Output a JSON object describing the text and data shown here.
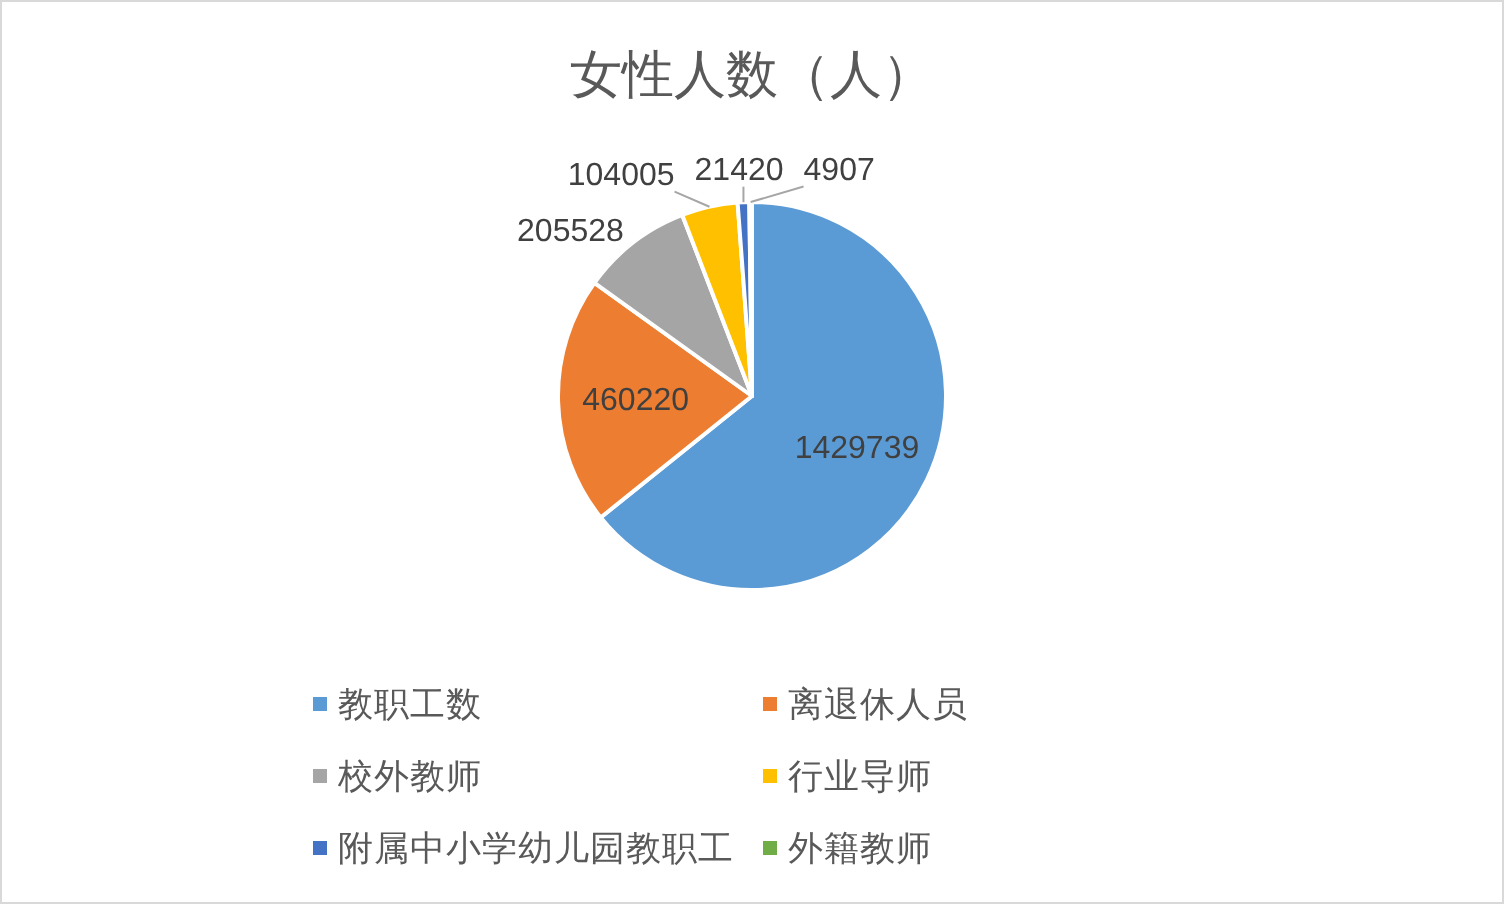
{
  "chart_data": {
    "type": "pie",
    "title": "女性人数（人）",
    "categories": [
      "教职工数",
      "离退休人员",
      "校外教师",
      "行业导师",
      "附属中小学幼儿园教职工",
      "外籍教师"
    ],
    "values": [
      1429739,
      460220,
      205528,
      104005,
      21420,
      4907
    ],
    "colors": [
      "#5b9bd5",
      "#ed7d31",
      "#a5a5a5",
      "#ffc000",
      "#4472c4",
      "#70ad47"
    ],
    "data_labels": true,
    "legend": "bottom"
  }
}
